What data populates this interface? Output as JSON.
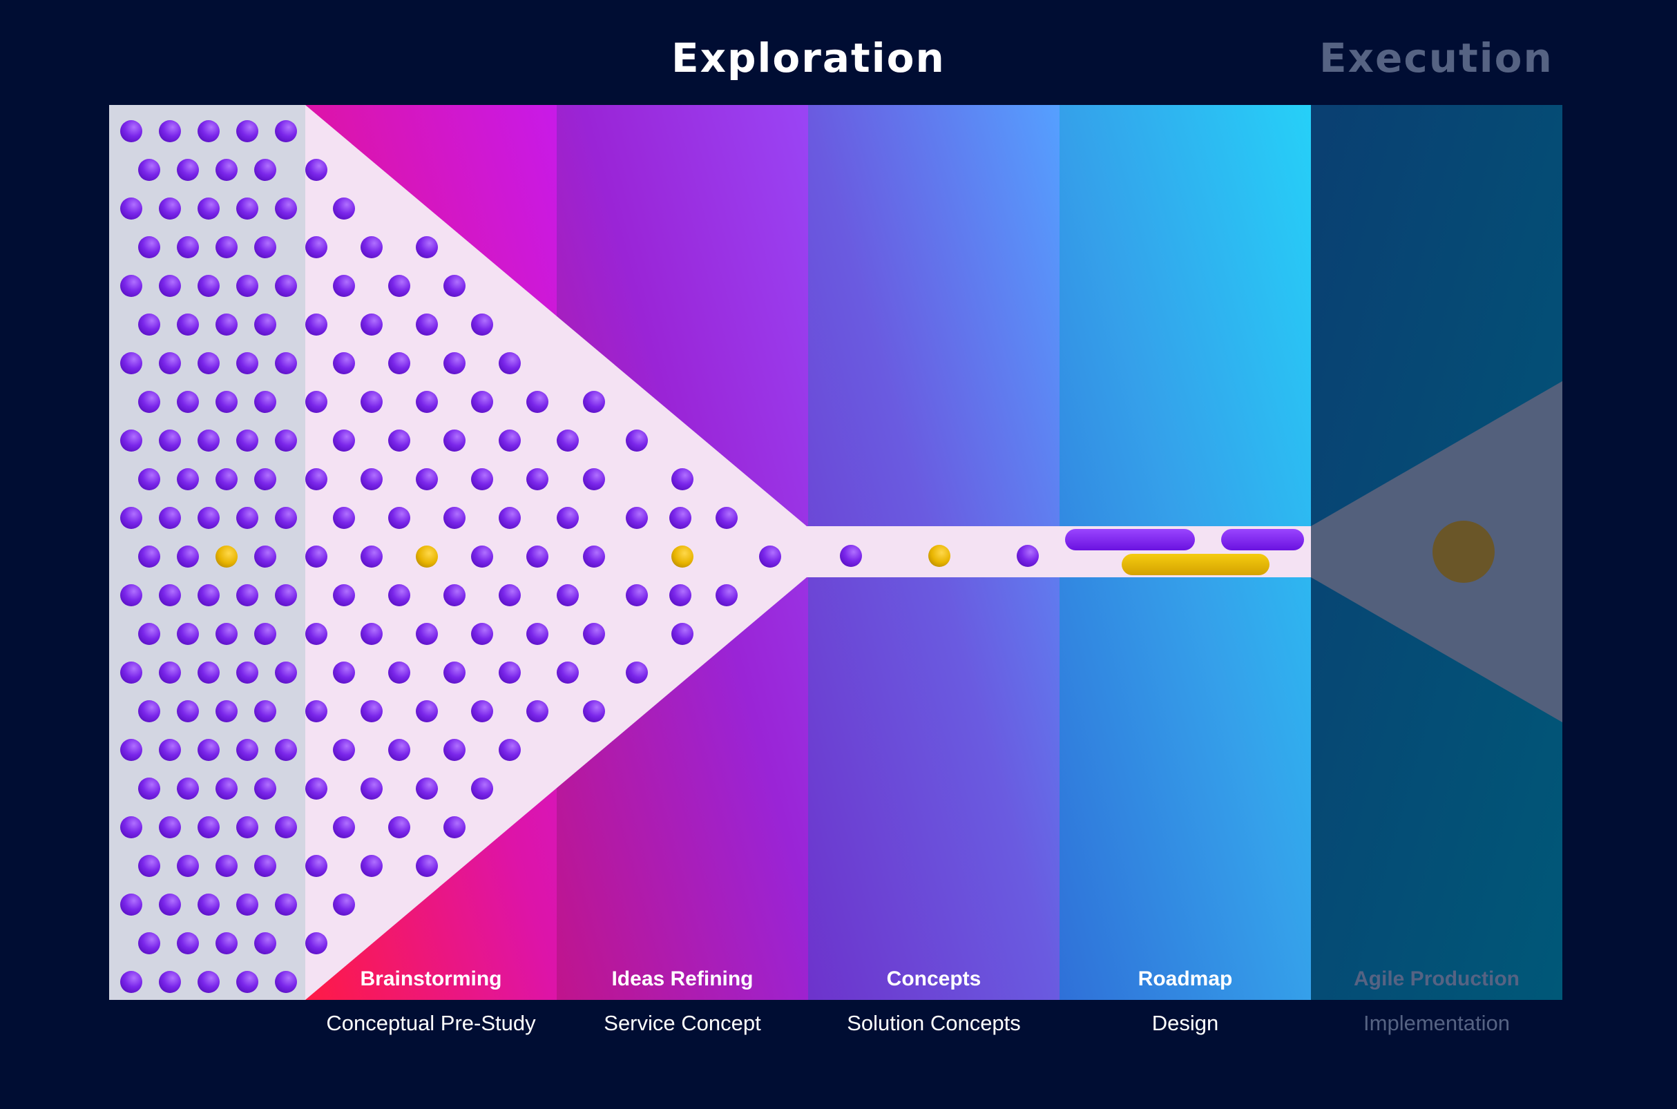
{
  "headings": {
    "exploration": "Exploration",
    "execution": "Execution"
  },
  "stages": [
    {
      "name": "Brainstorming",
      "phase": "Conceptual Pre-Study"
    },
    {
      "name": "Ideas Refining",
      "phase": "Service Concept"
    },
    {
      "name": "Concepts",
      "phase": "Solution Concepts"
    },
    {
      "name": "Roadmap",
      "phase": "Design"
    },
    {
      "name": "Agile Production",
      "phase": "Implementation"
    }
  ],
  "colors": {
    "background": "#000d33",
    "idea_dot": "#7b22e8",
    "selected_dot": "#e8b400",
    "active_label": "#ffffff",
    "inactive_label": "#566383"
  }
}
